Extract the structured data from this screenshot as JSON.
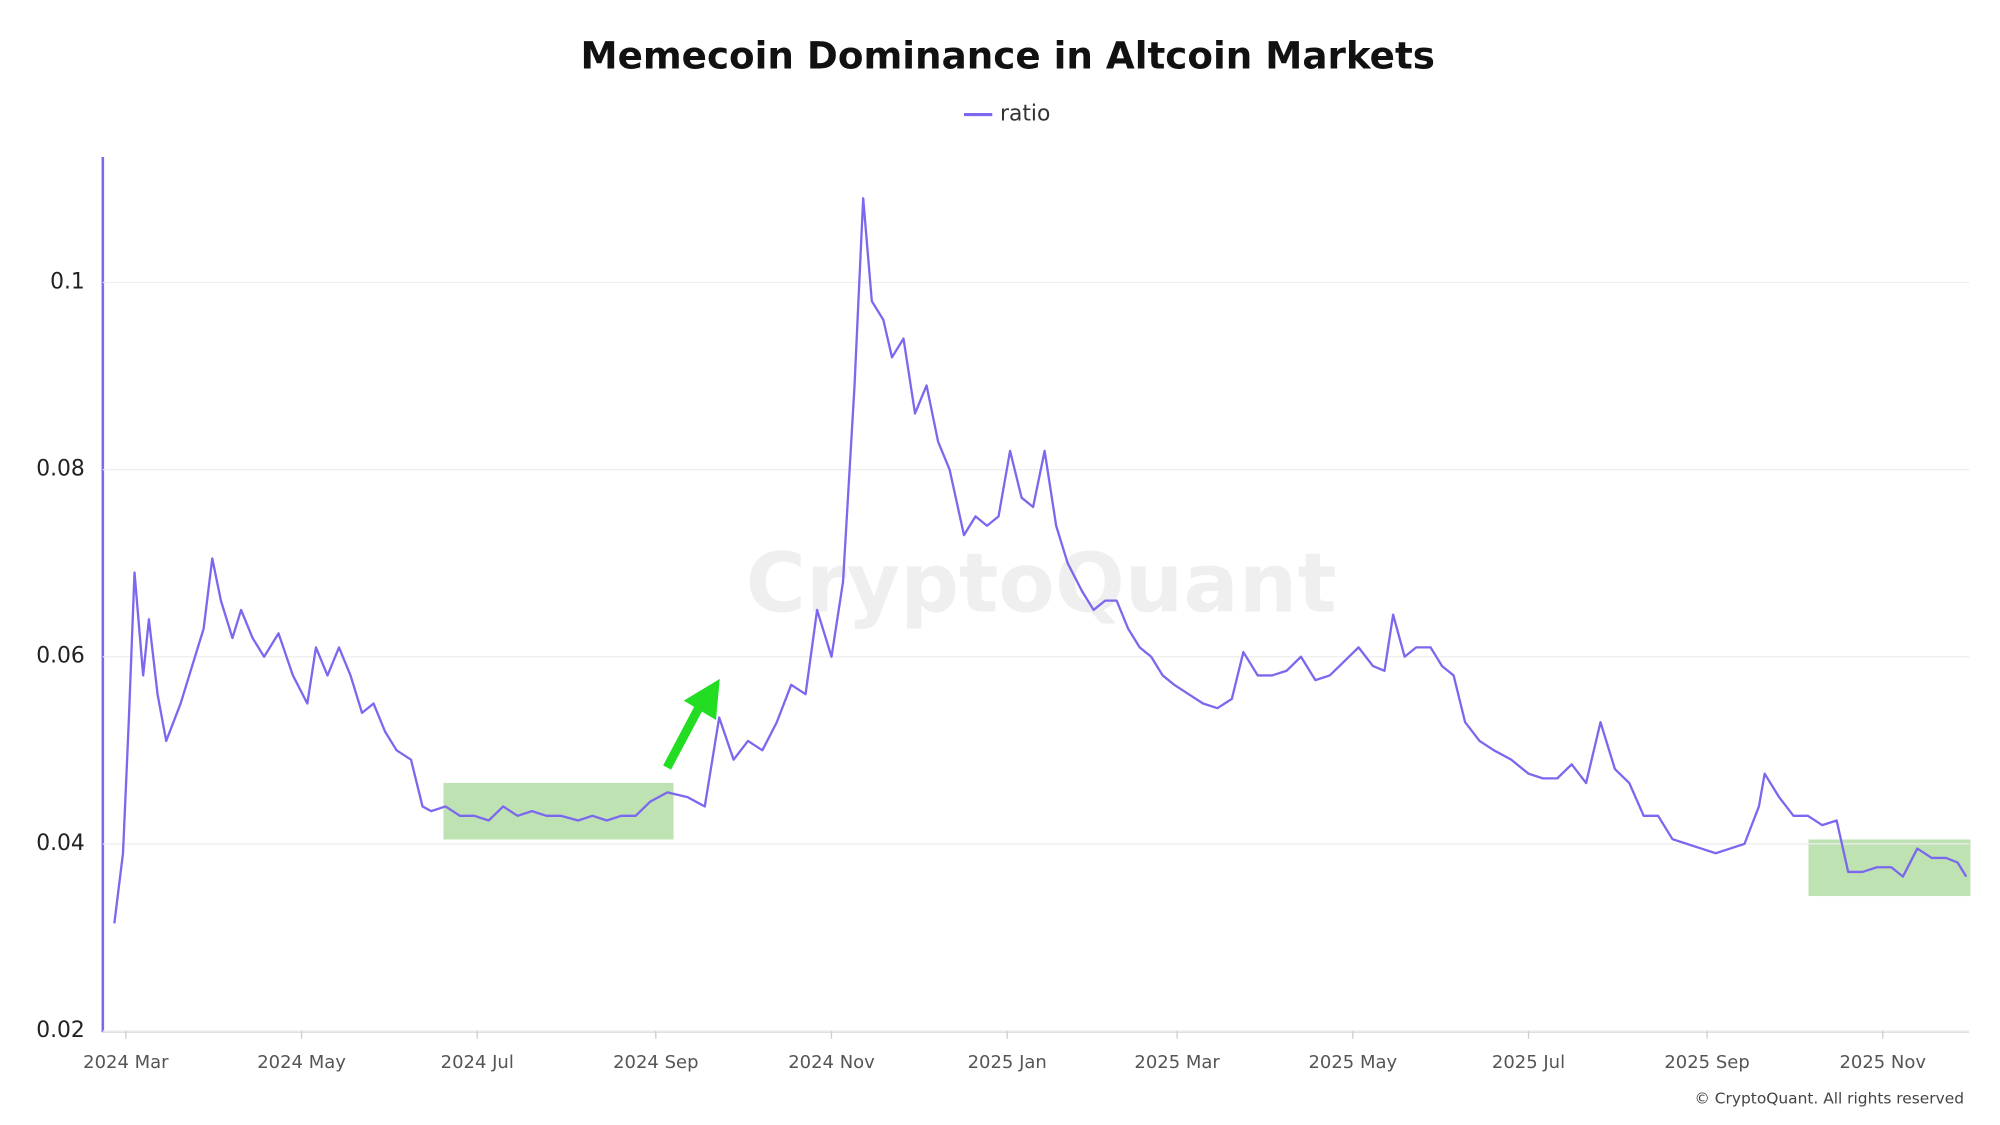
{
  "chart_data": {
    "type": "line",
    "title": "Memecoin Dominance in Altcoin Markets",
    "watermark": "CryptoQuant",
    "credit": "© CryptoQuant. All rights reserved",
    "legend": "top-center",
    "grid": true,
    "xlim": [
      "2024-02-22",
      "2025-12-01"
    ],
    "xticks": [
      {
        "value": "2024-03-01",
        "label": "2024 Mar"
      },
      {
        "value": "2024-05-01",
        "label": "2024 May"
      },
      {
        "value": "2024-07-01",
        "label": "2024 Jul"
      },
      {
        "value": "2024-09-01",
        "label": "2024 Sep"
      },
      {
        "value": "2024-11-01",
        "label": "2024 Nov"
      },
      {
        "value": "2025-01-01",
        "label": "2025 Jan"
      },
      {
        "value": "2025-03-01",
        "label": "2025 Mar"
      },
      {
        "value": "2025-05-01",
        "label": "2025 May"
      },
      {
        "value": "2025-07-01",
        "label": "2025 Jul"
      },
      {
        "value": "2025-09-01",
        "label": "2025 Sep"
      },
      {
        "value": "2025-11-01",
        "label": "2025 Nov"
      }
    ],
    "ylim": [
      0.02,
      0.113
    ],
    "yticks": [
      0.02,
      0.04,
      0.06,
      0.08,
      0.1
    ],
    "x": [
      "2024-02-26",
      "2024-02-29",
      "2024-03-02",
      "2024-03-04",
      "2024-03-07",
      "2024-03-09",
      "2024-03-12",
      "2024-03-15",
      "2024-03-20",
      "2024-03-25",
      "2024-03-28",
      "2024-03-31",
      "2024-04-03",
      "2024-04-07",
      "2024-04-10",
      "2024-04-14",
      "2024-04-18",
      "2024-04-23",
      "2024-04-28",
      "2024-05-03",
      "2024-05-06",
      "2024-05-10",
      "2024-05-14",
      "2024-05-18",
      "2024-05-22",
      "2024-05-26",
      "2024-05-30",
      "2024-06-03",
      "2024-06-08",
      "2024-06-12",
      "2024-06-15",
      "2024-06-20",
      "2024-06-25",
      "2024-06-30",
      "2024-07-05",
      "2024-07-10",
      "2024-07-15",
      "2024-07-20",
      "2024-07-25",
      "2024-07-30",
      "2024-08-05",
      "2024-08-10",
      "2024-08-15",
      "2024-08-20",
      "2024-08-25",
      "2024-08-30",
      "2024-09-05",
      "2024-09-12",
      "2024-09-18",
      "2024-09-23",
      "2024-09-28",
      "2024-10-03",
      "2024-10-08",
      "2024-10-13",
      "2024-10-18",
      "2024-10-23",
      "2024-10-27",
      "2024-11-01",
      "2024-11-05",
      "2024-11-09",
      "2024-11-12",
      "2024-11-15",
      "2024-11-19",
      "2024-11-22",
      "2024-11-26",
      "2024-11-30",
      "2024-12-04",
      "2024-12-08",
      "2024-12-12",
      "2024-12-17",
      "2024-12-21",
      "2024-12-25",
      "2024-12-29",
      "2025-01-02",
      "2025-01-06",
      "2025-01-10",
      "2025-01-14",
      "2025-01-18",
      "2025-01-22",
      "2025-01-27",
      "2025-01-31",
      "2025-02-04",
      "2025-02-08",
      "2025-02-12",
      "2025-02-16",
      "2025-02-20",
      "2025-02-24",
      "2025-02-28",
      "2025-03-05",
      "2025-03-10",
      "2025-03-15",
      "2025-03-20",
      "2025-03-24",
      "2025-03-29",
      "2025-04-03",
      "2025-04-08",
      "2025-04-13",
      "2025-04-18",
      "2025-04-23",
      "2025-04-28",
      "2025-05-03",
      "2025-05-08",
      "2025-05-12",
      "2025-05-15",
      "2025-05-19",
      "2025-05-23",
      "2025-05-28",
      "2025-06-01",
      "2025-06-05",
      "2025-06-09",
      "2025-06-14",
      "2025-06-19",
      "2025-06-25",
      "2025-07-01",
      "2025-07-06",
      "2025-07-11",
      "2025-07-16",
      "2025-07-21",
      "2025-07-26",
      "2025-07-31",
      "2025-08-05",
      "2025-08-10",
      "2025-08-15",
      "2025-08-20",
      "2025-08-25",
      "2025-08-30",
      "2025-09-04",
      "2025-09-09",
      "2025-09-14",
      "2025-09-19",
      "2025-09-21",
      "2025-09-26",
      "2025-10-01",
      "2025-10-06",
      "2025-10-11",
      "2025-10-16",
      "2025-10-20",
      "2025-10-25",
      "2025-10-30",
      "2025-11-04",
      "2025-11-08",
      "2025-11-13",
      "2025-11-18",
      "2025-11-23",
      "2025-11-27",
      "2025-11-30"
    ],
    "series": [
      {
        "name": "ratio",
        "color": "#7b68ee",
        "values": [
          0.0315,
          0.039,
          0.053,
          0.069,
          0.058,
          0.064,
          0.056,
          0.051,
          0.055,
          0.06,
          0.063,
          0.0705,
          0.066,
          0.062,
          0.065,
          0.062,
          0.06,
          0.0625,
          0.058,
          0.055,
          0.061,
          0.058,
          0.061,
          0.058,
          0.054,
          0.055,
          0.052,
          0.05,
          0.049,
          0.044,
          0.0435,
          0.044,
          0.043,
          0.043,
          0.0425,
          0.044,
          0.043,
          0.0435,
          0.043,
          0.043,
          0.0425,
          0.043,
          0.0425,
          0.043,
          0.043,
          0.0445,
          0.0455,
          0.045,
          0.044,
          0.0535,
          0.049,
          0.051,
          0.05,
          0.053,
          0.057,
          0.056,
          0.065,
          0.06,
          0.068,
          0.089,
          0.109,
          0.098,
          0.096,
          0.092,
          0.094,
          0.086,
          0.089,
          0.083,
          0.08,
          0.073,
          0.075,
          0.074,
          0.075,
          0.082,
          0.077,
          0.076,
          0.082,
          0.074,
          0.07,
          0.067,
          0.065,
          0.066,
          0.066,
          0.063,
          0.061,
          0.06,
          0.058,
          0.057,
          0.056,
          0.055,
          0.0545,
          0.0555,
          0.0605,
          0.058,
          0.058,
          0.0585,
          0.06,
          0.0575,
          0.058,
          0.0595,
          0.061,
          0.059,
          0.0585,
          0.0645,
          0.06,
          0.061,
          0.061,
          0.059,
          0.058,
          0.053,
          0.051,
          0.05,
          0.049,
          0.0475,
          0.047,
          0.047,
          0.0485,
          0.0465,
          0.053,
          0.048,
          0.0465,
          0.043,
          0.043,
          0.0405,
          0.04,
          0.0395,
          0.039,
          0.0395,
          0.04,
          0.044,
          0.0475,
          0.045,
          0.043,
          0.043,
          0.042,
          0.0425,
          0.037,
          0.037,
          0.0375,
          0.0375,
          0.0365,
          0.0395,
          0.0385,
          0.0385,
          0.038,
          0.0365
        ]
      }
    ]
  }
}
